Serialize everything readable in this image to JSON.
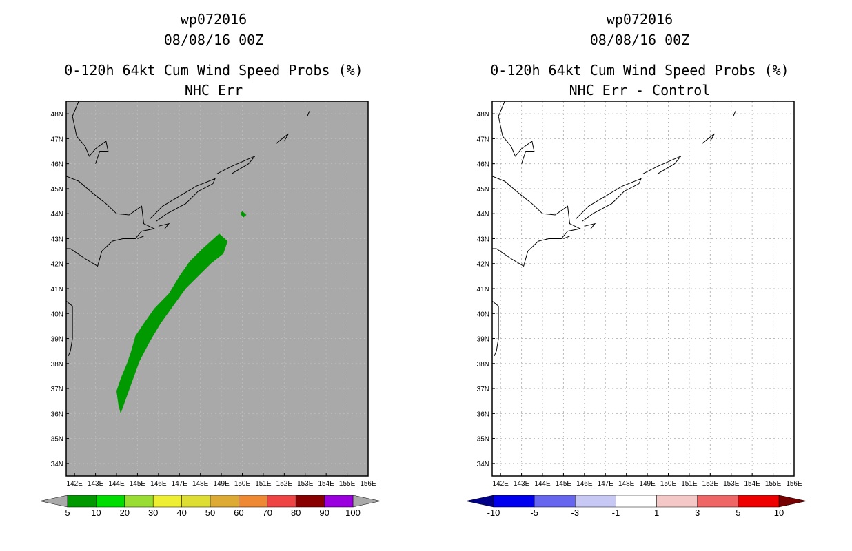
{
  "panels": [
    {
      "storm": "wp072016",
      "date": "08/08/16 00Z",
      "title": "0-120h 64kt Cum Wind Speed Probs (%)",
      "subtitle": "NHC Err",
      "background": "#a9a9a9",
      "colorbar": {
        "labels": [
          "5",
          "10",
          "20",
          "30",
          "40",
          "50",
          "60",
          "70",
          "80",
          "90",
          "100"
        ],
        "colors": [
          "#009900",
          "#00dd00",
          "#99dd33",
          "#eeee33",
          "#dddd33",
          "#ddaa33",
          "#ee8833",
          "#ee4444",
          "#880000",
          "#9900dd"
        ],
        "end_left": "#a9a9a9",
        "end_right": "#a9a9a9"
      }
    },
    {
      "storm": "wp072016",
      "date": "08/08/16 00Z",
      "title": "0-120h 64kt Cum Wind Speed Probs (%)",
      "subtitle": "NHC Err - Control",
      "background": "#ffffff",
      "colorbar": {
        "labels": [
          "-10",
          "-5",
          "-3",
          "-1",
          "1",
          "3",
          "5",
          "10"
        ],
        "colors": [
          "#0000ee",
          "#6666ee",
          "#c8c8f5",
          "#ffffff",
          "#f5c8c8",
          "#ee6666",
          "#ee0000"
        ],
        "end_left": "#000088",
        "end_right": "#770000"
      }
    }
  ],
  "chart_data": {
    "type": "heatmap",
    "title": "0-120h 64kt Cum Wind Speed Probs (%)",
    "lat_ticks": [
      "34N",
      "35N",
      "36N",
      "37N",
      "38N",
      "39N",
      "40N",
      "41N",
      "42N",
      "43N",
      "44N",
      "45N",
      "46N",
      "47N",
      "48N"
    ],
    "lon_ticks": [
      "142E",
      "143E",
      "144E",
      "145E",
      "146E",
      "147E",
      "148E",
      "149E",
      "150E",
      "151E",
      "152E",
      "153E",
      "154E",
      "155E",
      "156E"
    ],
    "lat_range": [
      33.5,
      48.5
    ],
    "lon_range": [
      141.6,
      156
    ],
    "probability_region": {
      "category": "5-10%",
      "color": "#009900",
      "outline_lonlat": [
        [
          144.2,
          36
        ],
        [
          144.1,
          36.3
        ],
        [
          144.0,
          36.9
        ],
        [
          144.2,
          37.4
        ],
        [
          144.5,
          38
        ],
        [
          144.7,
          38.5
        ],
        [
          144.9,
          39.1
        ],
        [
          145.3,
          39.6
        ],
        [
          145.8,
          40.2
        ],
        [
          146.5,
          40.8
        ],
        [
          147.0,
          41.5
        ],
        [
          147.5,
          42.1
        ],
        [
          148.1,
          42.6
        ],
        [
          148.9,
          43.2
        ],
        [
          149.3,
          42.9
        ],
        [
          149.1,
          42.4
        ],
        [
          148.5,
          42
        ],
        [
          147.9,
          41.5
        ],
        [
          147.3,
          41
        ],
        [
          146.7,
          40.3
        ],
        [
          146.1,
          39.6
        ],
        [
          145.6,
          38.9
        ],
        [
          145.1,
          38.1
        ],
        [
          144.8,
          37.4
        ],
        [
          144.5,
          36.7
        ]
      ],
      "island_lonlat": [
        [
          149.9,
          44
        ],
        [
          150.0,
          44.1
        ],
        [
          150.2,
          43.95
        ],
        [
          150.05,
          43.85
        ]
      ]
    },
    "coastlines_lonlat": [
      [
        [
          141.6,
          45.5
        ],
        [
          142.2,
          45.3
        ],
        [
          142.9,
          44.8
        ],
        [
          143.5,
          44.4
        ],
        [
          144.0,
          44.0
        ],
        [
          144.6,
          43.95
        ],
        [
          145.2,
          44.3
        ],
        [
          145.3,
          43.6
        ],
        [
          145.8,
          43.4
        ],
        [
          145.2,
          43.3
        ],
        [
          144.9,
          43.0
        ],
        [
          144.3,
          43.0
        ],
        [
          143.8,
          42.9
        ],
        [
          143.3,
          42.5
        ],
        [
          143.1,
          41.9
        ],
        [
          142.5,
          42.2
        ],
        [
          141.8,
          42.6
        ],
        [
          141.6,
          42.6
        ]
      ],
      [
        [
          141.6,
          40.5
        ],
        [
          141.9,
          40.3
        ],
        [
          141.9,
          39.7
        ],
        [
          141.9,
          39.0
        ],
        [
          141.8,
          38.5
        ],
        [
          141.7,
          38.3
        ]
      ],
      [
        [
          142.2,
          48.5
        ],
        [
          141.9,
          47.9
        ],
        [
          142.1,
          47.1
        ],
        [
          142.5,
          46.7
        ],
        [
          142.7,
          46.3
        ],
        [
          143.0,
          46.6
        ],
        [
          143.5,
          46.9
        ],
        [
          143.6,
          46.5
        ],
        [
          143.2,
          46.5
        ],
        [
          143.0,
          46.0
        ]
      ],
      [
        [
          145.6,
          43.8
        ],
        [
          146.2,
          44.3
        ],
        [
          147.0,
          44.7
        ],
        [
          147.8,
          45.1
        ],
        [
          148.7,
          45.4
        ],
        [
          148.6,
          45.2
        ],
        [
          147.9,
          44.9
        ],
        [
          147.3,
          44.4
        ],
        [
          146.4,
          44.0
        ],
        [
          145.9,
          43.7
        ]
      ],
      [
        [
          148.8,
          45.6
        ],
        [
          149.5,
          45.9
        ],
        [
          150.6,
          46.3
        ],
        [
          150.3,
          46.0
        ],
        [
          149.5,
          45.6
        ]
      ],
      [
        [
          151.6,
          46.8
        ],
        [
          152.2,
          47.2
        ],
        [
          152.0,
          46.9
        ]
      ],
      [
        [
          153.2,
          48.1
        ],
        [
          153.1,
          47.9
        ]
      ],
      [
        [
          146.0,
          43.5
        ],
        [
          146.5,
          43.6
        ],
        [
          146.3,
          43.4
        ]
      ],
      [
        [
          145.0,
          43.0
        ],
        [
          145.3,
          43.1
        ]
      ]
    ]
  }
}
